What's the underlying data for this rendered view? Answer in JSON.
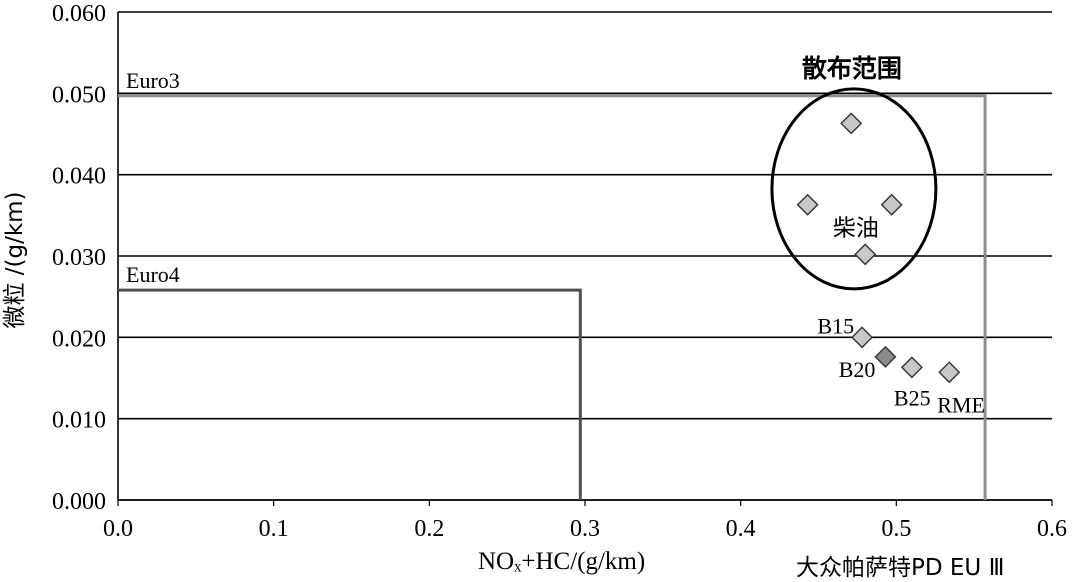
{
  "chart_data": {
    "type": "scatter",
    "xlabel": "NOₓ+HC/(g/km)",
    "ylabel": "微粒 /(g/km)",
    "footnote": "大众帕萨特PD EU Ⅲ",
    "xlim": [
      0.0,
      0.6
    ],
    "ylim": [
      0.0,
      0.06
    ],
    "x_ticks": [
      "0.0",
      "0.1",
      "0.2",
      "0.3",
      "0.4",
      "0.5",
      "0.6"
    ],
    "y_ticks": [
      "0.000",
      "0.010",
      "0.020",
      "0.030",
      "0.040",
      "0.050",
      "0.060"
    ],
    "grid": "horizontal",
    "limits": [
      {
        "name": "Euro3",
        "x": 0.557,
        "y": 0.0497
      },
      {
        "name": "Euro4",
        "x": 0.297,
        "y": 0.0258
      }
    ],
    "scatter_region": {
      "label": "散布范围",
      "fuel_label": "柴油"
    },
    "points": [
      {
        "x": 0.471,
        "y": 0.0463,
        "label": "",
        "color": "#c8c8c8"
      },
      {
        "x": 0.443,
        "y": 0.0363,
        "label": "",
        "color": "#c8c8c8"
      },
      {
        "x": 0.497,
        "y": 0.0363,
        "label": "",
        "color": "#c8c8c8"
      },
      {
        "x": 0.48,
        "y": 0.0302,
        "label": "",
        "color": "#c8c8c8"
      },
      {
        "x": 0.478,
        "y": 0.02,
        "label": "B15",
        "color": "#c8c8c8"
      },
      {
        "x": 0.493,
        "y": 0.0176,
        "label": "B20",
        "color": "#8c8c8c"
      },
      {
        "x": 0.51,
        "y": 0.0163,
        "label": "B25",
        "color": "#c8c8c8"
      },
      {
        "x": 0.534,
        "y": 0.0157,
        "label": "RME",
        "color": "#c8c8c8"
      }
    ],
    "colors": {
      "grid": "#000000",
      "euro3": "#8c8c8c",
      "euro4": "#505050",
      "marker_edge": "#333333"
    }
  }
}
